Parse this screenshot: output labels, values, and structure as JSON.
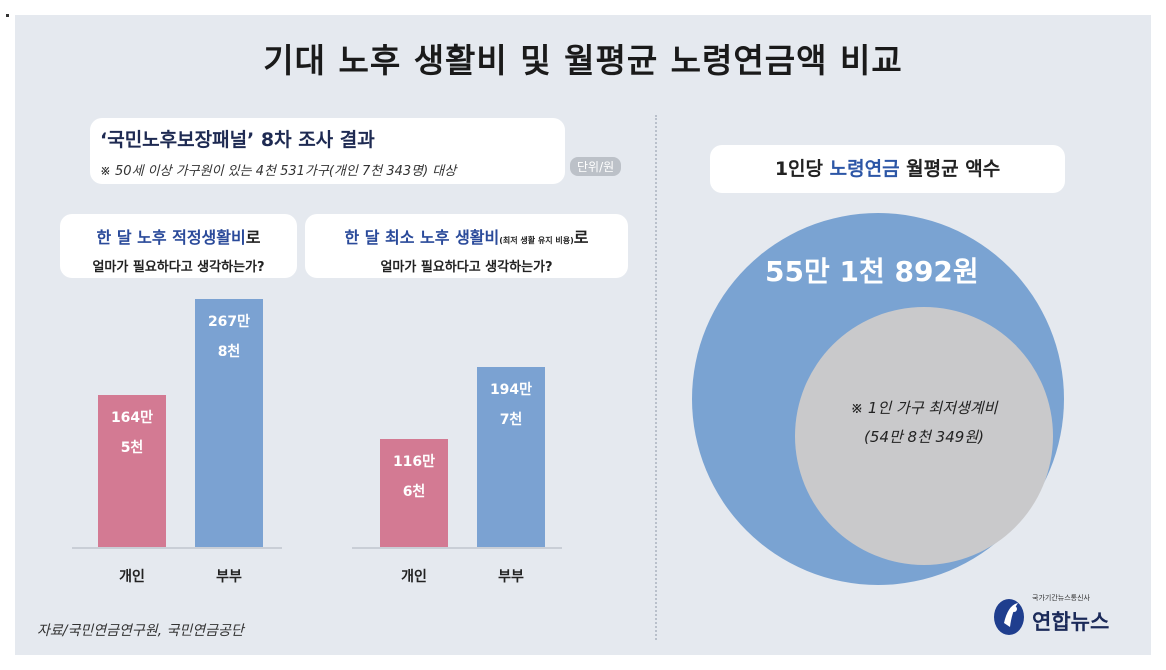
{
  "title": "기대 노후 생활비 및 월평균 노령연금액 비교",
  "survey": {
    "title": "‘국민노후보장패널’ 8차 조사 결과",
    "note": "※ 50세 이상 가구원이 있는 4천 531가구(개인 7천 343명) 대상",
    "unit": "단위/원"
  },
  "question_adequate": {
    "highlight": "한 달 노후 적정생활비",
    "suffix": "로",
    "line2": "얼마가 필요하다고 생각하는가?"
  },
  "question_minimum": {
    "highlight": "한 달 최소 노후 생활비",
    "small": "(최저 생활 유지 비용)",
    "suffix": "로",
    "line2": "얼마가 필요하다고 생각하는가?"
  },
  "chart_data": [
    {
      "type": "bar",
      "categories": [
        "개인",
        "부부"
      ],
      "values": [
        1645000,
        2678000
      ],
      "labels": [
        [
          "164만",
          "5천"
        ],
        [
          "267만",
          "8천"
        ]
      ],
      "colors": [
        "#d37a93",
        "#7ba2d2"
      ]
    },
    {
      "type": "bar",
      "categories": [
        "개인",
        "부부"
      ],
      "values": [
        1166000,
        1947000
      ],
      "labels": [
        [
          "116만",
          "6천"
        ],
        [
          "194만",
          "7천"
        ]
      ],
      "colors": [
        "#d37a93",
        "#7ba2d2"
      ]
    }
  ],
  "pension": {
    "heading_pre": "1인당",
    "heading_accent": "노령연금",
    "heading_post": "월평균 액수",
    "amount": "55만 1천 892원",
    "amount_value": 551892,
    "minimum_line1": "※ 1인 가구 최저생계비",
    "minimum_line2": "(54만 8천 349원)",
    "minimum_value": 548349
  },
  "source": "자료/국민연금연구원, 국민연금공단",
  "logo": {
    "small": "국가기간뉴스통신사",
    "name": "연합뉴스"
  },
  "colors": {
    "individual": "#d37a93",
    "couple": "#7ba2d2",
    "accent": "#2c56a6"
  }
}
